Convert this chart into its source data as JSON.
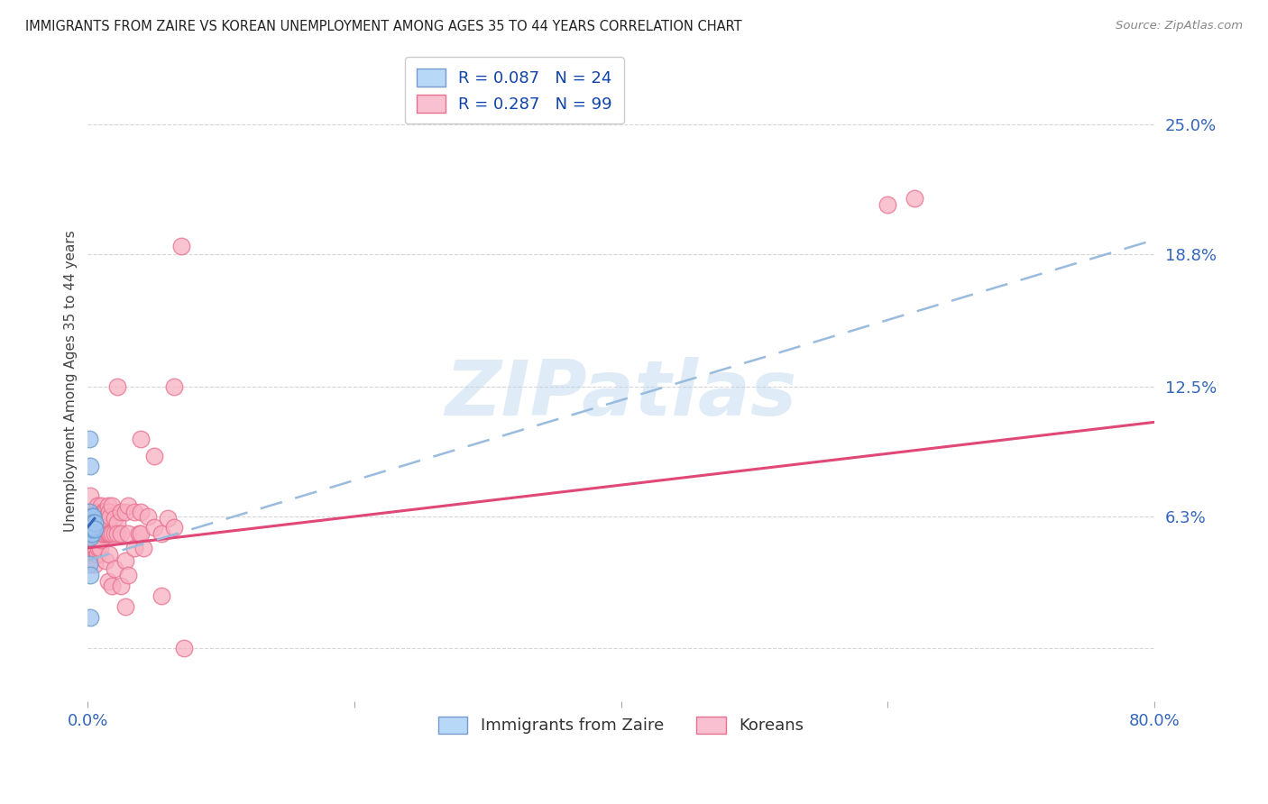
{
  "title": "IMMIGRANTS FROM ZAIRE VS KOREAN UNEMPLOYMENT AMONG AGES 35 TO 44 YEARS CORRELATION CHART",
  "source": "Source: ZipAtlas.com",
  "ylabel": "Unemployment Among Ages 35 to 44 years",
  "xlim": [
    0.0,
    0.8
  ],
  "ylim": [
    -0.025,
    0.28
  ],
  "ytick_positions": [
    0.0,
    0.063,
    0.125,
    0.188,
    0.25
  ],
  "yticklabels": [
    "",
    "6.3%",
    "12.5%",
    "18.8%",
    "25.0%"
  ],
  "watermark": "ZIPatlas",
  "zaire_color": "#a0c4f0",
  "zaire_edge_color": "#6699cc",
  "korean_color": "#f8afc0",
  "korean_edge_color": "#e87090",
  "zaire_line_color": "#3366bb",
  "korean_line_color": "#e04878",
  "dashed_line_color": "#99bbdd",
  "background_color": "#ffffff",
  "zaire_scatter": [
    [
      0.001,
      0.1
    ],
    [
      0.002,
      0.087
    ],
    [
      0.001,
      0.065
    ],
    [
      0.001,
      0.062
    ],
    [
      0.001,
      0.06
    ],
    [
      0.001,
      0.058
    ],
    [
      0.001,
      0.057
    ],
    [
      0.002,
      0.055
    ],
    [
      0.002,
      0.053
    ],
    [
      0.002,
      0.058
    ],
    [
      0.002,
      0.06
    ],
    [
      0.003,
      0.063
    ],
    [
      0.003,
      0.06
    ],
    [
      0.003,
      0.058
    ],
    [
      0.003,
      0.055
    ],
    [
      0.003,
      0.057
    ],
    [
      0.004,
      0.063
    ],
    [
      0.004,
      0.06
    ],
    [
      0.004,
      0.058
    ],
    [
      0.005,
      0.06
    ],
    [
      0.005,
      0.057
    ],
    [
      0.001,
      0.04
    ],
    [
      0.002,
      0.035
    ],
    [
      0.002,
      0.015
    ]
  ],
  "korean_scatter": [
    [
      0.001,
      0.048
    ],
    [
      0.001,
      0.052
    ],
    [
      0.001,
      0.055
    ],
    [
      0.001,
      0.06
    ],
    [
      0.002,
      0.048
    ],
    [
      0.002,
      0.058
    ],
    [
      0.002,
      0.065
    ],
    [
      0.002,
      0.073
    ],
    [
      0.002,
      0.042
    ],
    [
      0.003,
      0.052
    ],
    [
      0.003,
      0.06
    ],
    [
      0.003,
      0.063
    ],
    [
      0.003,
      0.055
    ],
    [
      0.003,
      0.045
    ],
    [
      0.004,
      0.058
    ],
    [
      0.004,
      0.063
    ],
    [
      0.004,
      0.055
    ],
    [
      0.004,
      0.048
    ],
    [
      0.005,
      0.06
    ],
    [
      0.005,
      0.055
    ],
    [
      0.005,
      0.048
    ],
    [
      0.005,
      0.04
    ],
    [
      0.005,
      0.063
    ],
    [
      0.006,
      0.065
    ],
    [
      0.006,
      0.058
    ],
    [
      0.006,
      0.055
    ],
    [
      0.006,
      0.048
    ],
    [
      0.007,
      0.068
    ],
    [
      0.007,
      0.063
    ],
    [
      0.007,
      0.058
    ],
    [
      0.007,
      0.055
    ],
    [
      0.007,
      0.045
    ],
    [
      0.008,
      0.065
    ],
    [
      0.008,
      0.06
    ],
    [
      0.008,
      0.055
    ],
    [
      0.008,
      0.048
    ],
    [
      0.009,
      0.063
    ],
    [
      0.009,
      0.058
    ],
    [
      0.009,
      0.055
    ],
    [
      0.009,
      0.048
    ],
    [
      0.01,
      0.068
    ],
    [
      0.01,
      0.062
    ],
    [
      0.01,
      0.058
    ],
    [
      0.01,
      0.052
    ],
    [
      0.011,
      0.065
    ],
    [
      0.011,
      0.06
    ],
    [
      0.011,
      0.055
    ],
    [
      0.012,
      0.065
    ],
    [
      0.012,
      0.06
    ],
    [
      0.012,
      0.055
    ],
    [
      0.013,
      0.065
    ],
    [
      0.013,
      0.058
    ],
    [
      0.013,
      0.042
    ],
    [
      0.014,
      0.063
    ],
    [
      0.014,
      0.055
    ],
    [
      0.015,
      0.068
    ],
    [
      0.015,
      0.06
    ],
    [
      0.015,
      0.055
    ],
    [
      0.015,
      0.032
    ],
    [
      0.016,
      0.065
    ],
    [
      0.016,
      0.055
    ],
    [
      0.016,
      0.045
    ],
    [
      0.017,
      0.063
    ],
    [
      0.017,
      0.055
    ],
    [
      0.018,
      0.068
    ],
    [
      0.018,
      0.055
    ],
    [
      0.018,
      0.03
    ],
    [
      0.02,
      0.062
    ],
    [
      0.02,
      0.055
    ],
    [
      0.02,
      0.038
    ],
    [
      0.022,
      0.125
    ],
    [
      0.022,
      0.06
    ],
    [
      0.022,
      0.055
    ],
    [
      0.025,
      0.065
    ],
    [
      0.025,
      0.055
    ],
    [
      0.025,
      0.03
    ],
    [
      0.028,
      0.065
    ],
    [
      0.028,
      0.042
    ],
    [
      0.028,
      0.02
    ],
    [
      0.03,
      0.068
    ],
    [
      0.03,
      0.055
    ],
    [
      0.03,
      0.035
    ],
    [
      0.035,
      0.065
    ],
    [
      0.035,
      0.048
    ],
    [
      0.038,
      0.055
    ],
    [
      0.04,
      0.1
    ],
    [
      0.04,
      0.065
    ],
    [
      0.04,
      0.055
    ],
    [
      0.042,
      0.048
    ],
    [
      0.045,
      0.063
    ],
    [
      0.05,
      0.092
    ],
    [
      0.05,
      0.058
    ],
    [
      0.055,
      0.055
    ],
    [
      0.055,
      0.025
    ],
    [
      0.06,
      0.062
    ],
    [
      0.065,
      0.125
    ],
    [
      0.065,
      0.058
    ],
    [
      0.07,
      0.192
    ],
    [
      0.072,
      0.0
    ],
    [
      0.6,
      0.212
    ],
    [
      0.62,
      0.215
    ]
  ],
  "zaire_trend_x": [
    0.0,
    0.005
  ],
  "zaire_trend_y": [
    0.058,
    0.062
  ],
  "korean_trend_x": [
    0.0,
    0.8
  ],
  "korean_trend_y": [
    0.048,
    0.108
  ],
  "dashed_trend_x": [
    0.0,
    0.8
  ],
  "dashed_trend_y": [
    0.042,
    0.195
  ]
}
